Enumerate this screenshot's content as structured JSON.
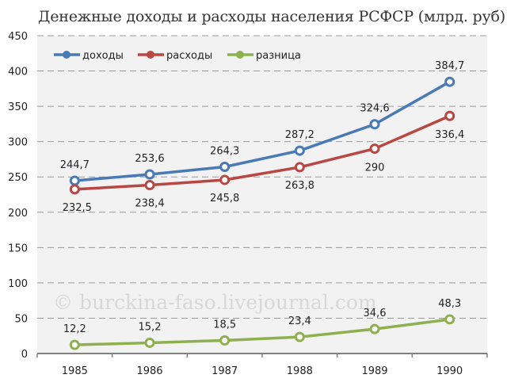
{
  "chart_data": {
    "type": "line",
    "title": "Денежные доходы и расходы населения РСФСР (млрд. руб)",
    "xlabel": "",
    "ylabel": "",
    "categories": [
      "1985",
      "1986",
      "1987",
      "1988",
      "1989",
      "1990"
    ],
    "series": [
      {
        "name": "доходы",
        "color": "#4a7ab5",
        "values": [
          244.7,
          253.6,
          264.3,
          287.2,
          324.6,
          384.7
        ],
        "labels": [
          "244,7",
          "253,6",
          "264,3",
          "287,2",
          "324,6",
          "384,7"
        ]
      },
      {
        "name": "расходы",
        "color": "#b94744",
        "values": [
          232.5,
          238.4,
          245.8,
          263.8,
          290,
          336.4
        ],
        "labels": [
          "232,5",
          "238,4",
          "245,8",
          "263,8",
          "290",
          "336,4"
        ]
      },
      {
        "name": "разница",
        "color": "#8fb04f",
        "values": [
          12.2,
          15.2,
          18.5,
          23.4,
          34.6,
          48.3
        ],
        "labels": [
          "12,2",
          "15,2",
          "18,5",
          "23,4",
          "34,6",
          "48,3"
        ]
      }
    ],
    "ylim": [
      0,
      450
    ],
    "yticks": [
      "0",
      "50",
      "100",
      "150",
      "200",
      "250",
      "300",
      "350",
      "400",
      "450"
    ],
    "grid": true,
    "legend_position": "top-left inside"
  },
  "watermark": "© burckina-faso.livejournal.com"
}
